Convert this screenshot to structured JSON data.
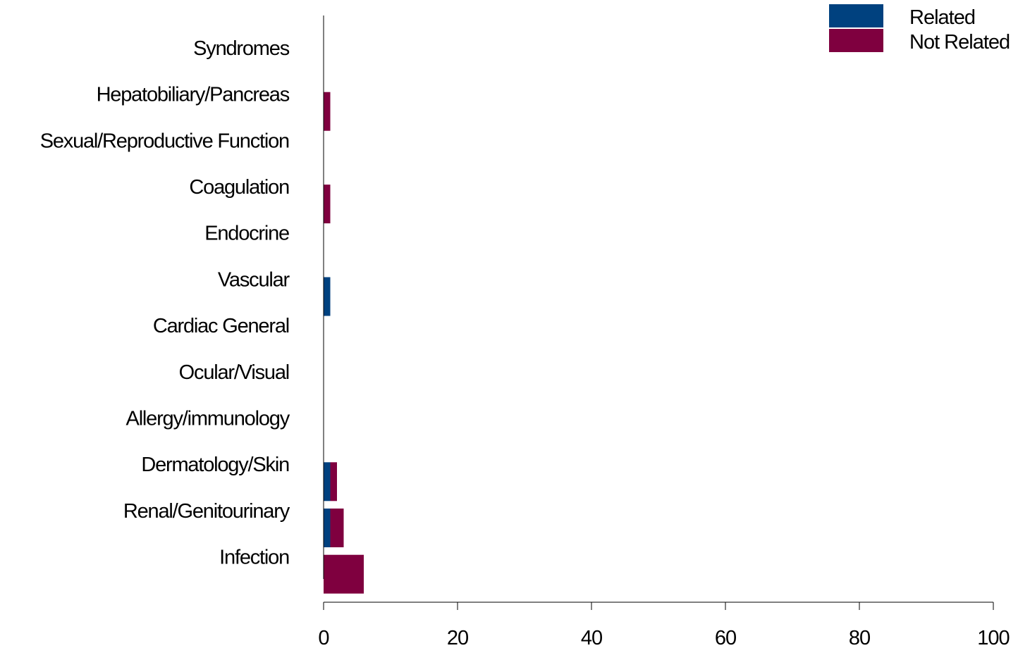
{
  "chart_data": {
    "type": "bar",
    "orientation": "horizontal",
    "stacked": true,
    "categories": [
      "Syndromes",
      "Hepatobiliary/Pancreas",
      "Sexual/Reproductive Function",
      "Coagulation",
      "Endocrine",
      "Vascular",
      "Cardiac General",
      "Ocular/Visual",
      "Allergy/immunology",
      "Dermatology/Skin",
      "Renal/Genitourinary",
      "Infection"
    ],
    "series": [
      {
        "name": "Related",
        "color": "#00417f",
        "values": [
          0,
          0,
          0,
          0,
          0,
          1,
          0,
          0,
          0,
          1,
          1,
          0
        ]
      },
      {
        "name": "Not Related",
        "color": "#7f003f",
        "values": [
          0,
          1,
          0,
          1,
          0,
          0,
          0,
          0,
          0,
          1,
          2,
          6
        ]
      }
    ],
    "xlim": [
      0,
      100
    ],
    "xticks": [
      "0",
      "20",
      "40",
      "60",
      "80",
      "100"
    ],
    "legend_position": "top-right",
    "grid": false,
    "title": "",
    "xlabel": "",
    "ylabel": ""
  }
}
